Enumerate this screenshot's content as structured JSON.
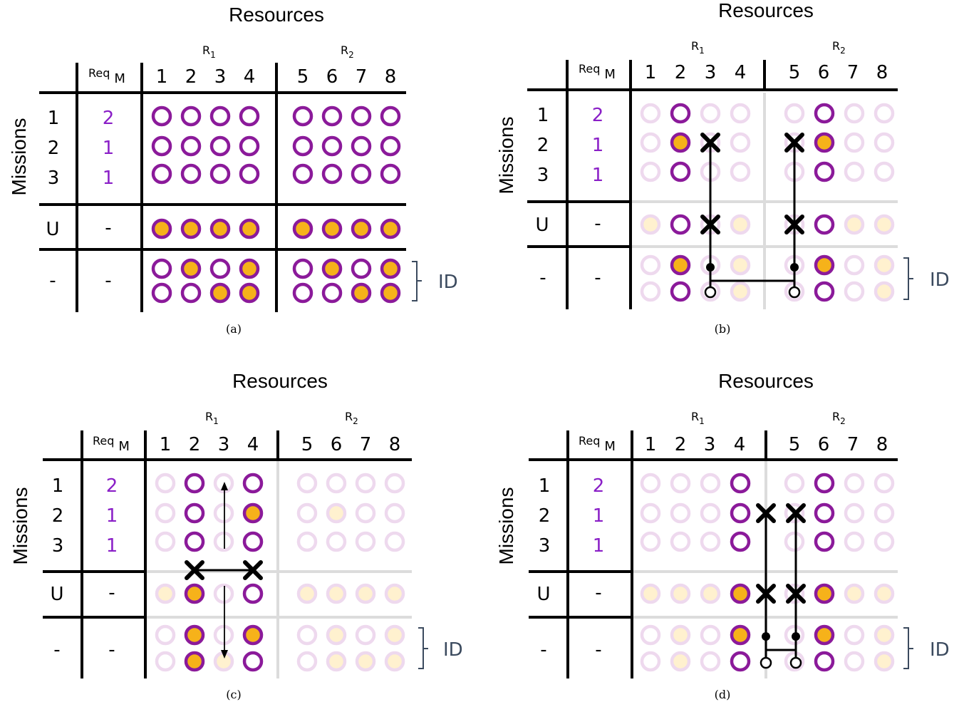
{
  "colors": {
    "purple": "#8b1a9a",
    "orange": "#f6b21a",
    "req": "#8a1fc7",
    "grid": "#000000",
    "fade_ring": "#eed9ee",
    "fade_fill": "#fff1cf",
    "fade_line": "#dcdcdc",
    "id_brace": "#3b4a5e"
  },
  "resources_label": "Resources",
  "missions_label": "Missions",
  "req_label": "Req",
  "req_sub": "M",
  "r1": "R",
  "r1_sub": "1",
  "r2": "R",
  "r2_sub": "2",
  "resource_numbers": [
    "1",
    "2",
    "3",
    "4",
    "5",
    "6",
    "7",
    "8"
  ],
  "mission_numbers": [
    "1",
    "2",
    "3"
  ],
  "req_values": [
    "2",
    "1",
    "1"
  ],
  "u_label": "U",
  "dash": "-",
  "id_label": "ID",
  "panels": [
    {
      "caption": "(a)",
      "cells": [
        "PPPPPPPP",
        "PPPPPPPP",
        "PPPPPPPP",
        "FFFFFFFF",
        "PFPFPFPF",
        "PPFFPPFF"
      ]
    },
    {
      "caption": "(b)",
      "cells": [
        "rPrrrPrr",
        "rFrrrFrr",
        "rPrrrPrr",
        "fPrfrPff",
        "rFrfrFrf",
        "rPrfrPrf"
      ]
    },
    {
      "caption": "(c)",
      "cells": [
        "rPrPrrrr",
        "rPrFrfrr",
        "rPrPrrrr",
        "fFrPffff",
        "rFrFrfrf",
        "rFfPrfff"
      ]
    },
    {
      "caption": "(d)",
      "cells": [
        "rrrPrPrr",
        "rrrPrPrr",
        "rrrPrPrr",
        "fffFrFff",
        "rfrFrFrf",
        "rfrPrPrf"
      ]
    }
  ]
}
